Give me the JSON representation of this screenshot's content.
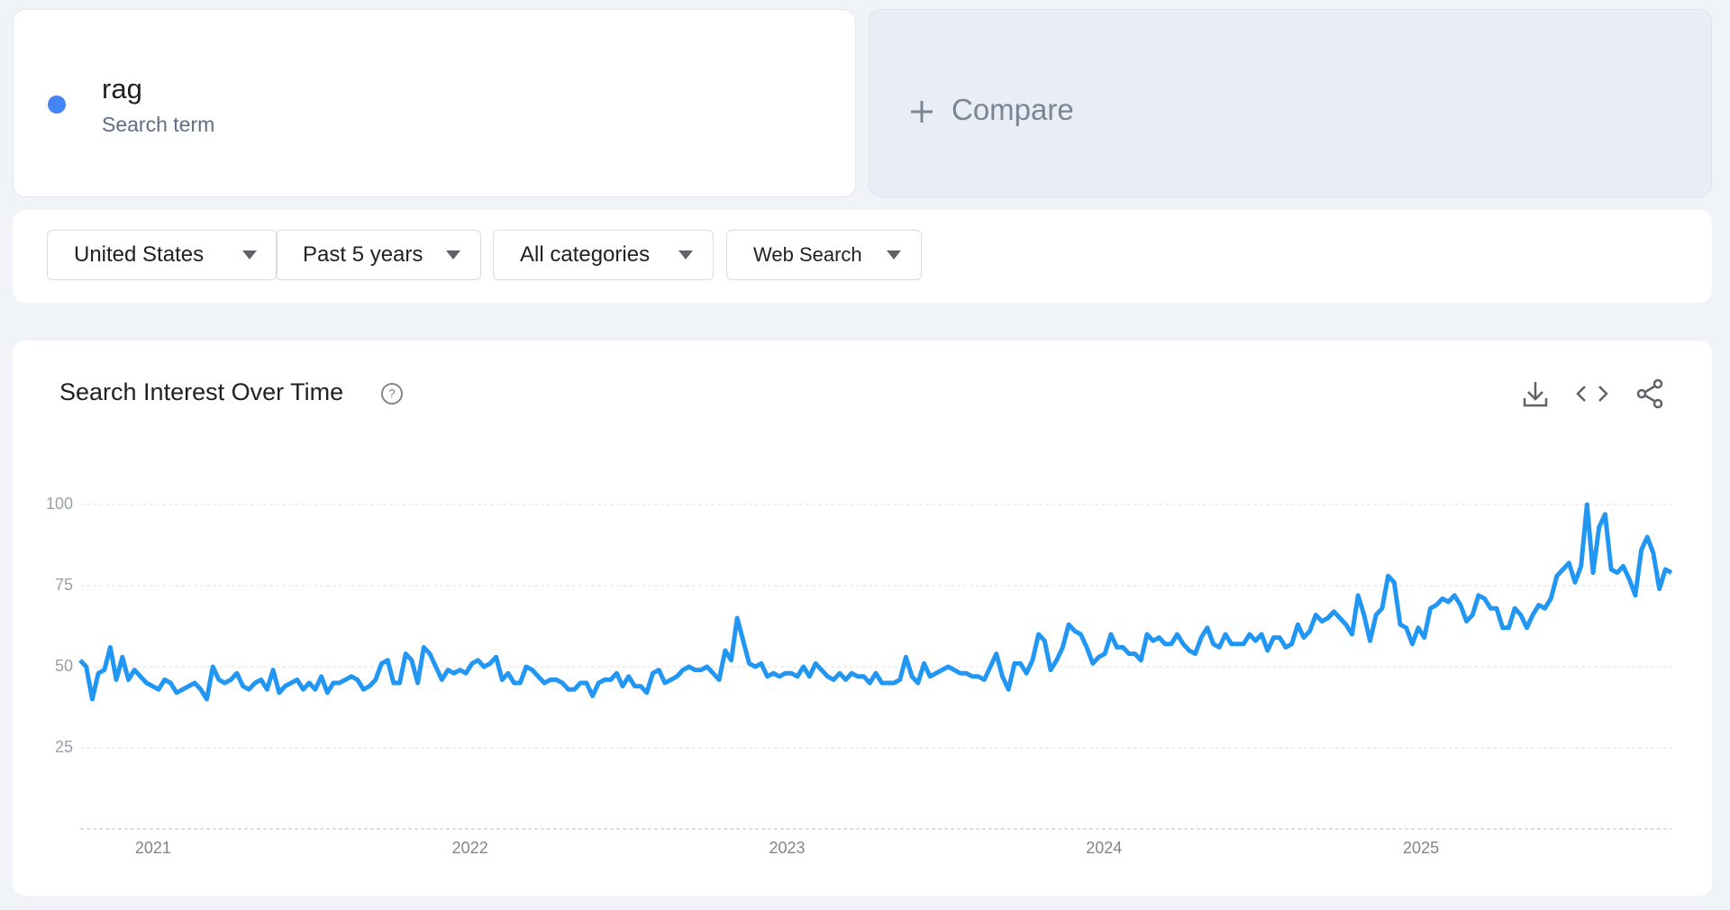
{
  "term_subtitle": "Search term",
  "compare": "Compare",
  "filters": [
    "United States",
    "Past 5 years",
    "All categories",
    "Web Search"
  ],
  "chart_data": {
    "type": "line",
    "title": "Search Interest Over Time",
    "series": [
      {
        "name": "rag",
        "color": "#2196f3",
        "values": [
          52,
          50,
          40,
          48,
          49,
          56,
          46,
          53,
          46,
          49,
          47,
          45,
          44,
          43,
          46,
          45,
          42,
          43,
          44,
          45,
          43,
          40,
          50,
          46,
          45,
          46,
          48,
          44,
          43,
          45,
          46,
          43,
          49,
          42,
          44,
          45,
          46,
          43,
          45,
          43,
          47,
          42,
          45,
          45,
          46,
          47,
          46,
          43,
          44,
          46,
          51,
          52,
          45,
          45,
          54,
          52,
          45,
          56,
          54,
          50,
          46,
          49,
          48,
          49,
          48,
          51,
          52,
          50,
          51,
          53,
          46,
          48,
          45,
          45,
          50,
          49,
          47,
          45,
          46,
          46,
          45,
          43,
          43,
          45,
          45,
          41,
          45,
          46,
          46,
          48,
          44,
          47,
          44,
          44,
          42,
          48,
          49,
          45,
          46,
          47,
          49,
          50,
          49,
          49,
          50,
          48,
          46,
          55,
          52,
          65,
          58,
          51,
          50,
          51,
          47,
          48,
          47,
          48,
          48,
          47,
          50,
          47,
          51,
          49,
          47,
          46,
          48,
          46,
          48,
          47,
          47,
          45,
          48,
          45,
          45,
          45,
          46,
          53,
          47,
          45,
          51,
          47,
          48,
          49,
          50,
          49,
          48,
          48,
          47,
          47,
          46,
          50,
          54,
          47,
          43,
          51,
          51,
          48,
          52,
          60,
          58,
          49,
          52,
          56,
          63,
          61,
          60,
          56,
          51,
          53,
          54,
          60,
          56,
          56,
          54,
          54,
          52,
          60,
          58,
          59,
          57,
          57,
          60,
          57,
          55,
          54,
          59,
          62,
          57,
          56,
          60,
          57,
          57,
          57,
          60,
          58,
          60,
          55,
          59,
          59,
          56,
          57,
          63,
          59,
          61,
          66,
          64,
          65,
          67,
          65,
          63,
          60,
          72,
          66,
          58,
          66,
          68,
          78,
          76,
          63,
          62,
          57,
          62,
          59,
          68,
          69,
          71,
          70,
          72,
          69,
          64,
          66,
          72,
          71,
          68,
          68,
          62,
          62,
          68,
          66,
          62,
          66,
          69,
          68,
          71,
          78,
          80,
          82,
          76,
          81,
          100,
          79,
          93,
          97,
          80,
          79,
          81,
          77,
          72,
          86,
          90,
          85,
          74,
          80,
          79
        ]
      }
    ],
    "xlim": [
      2020.77,
      2025.79
    ],
    "xticks": [
      2021,
      2022,
      2023,
      2024,
      2025
    ],
    "ylim": [
      0,
      100
    ],
    "yticks": [
      25,
      50,
      75,
      100
    ],
    "grid": true
  }
}
